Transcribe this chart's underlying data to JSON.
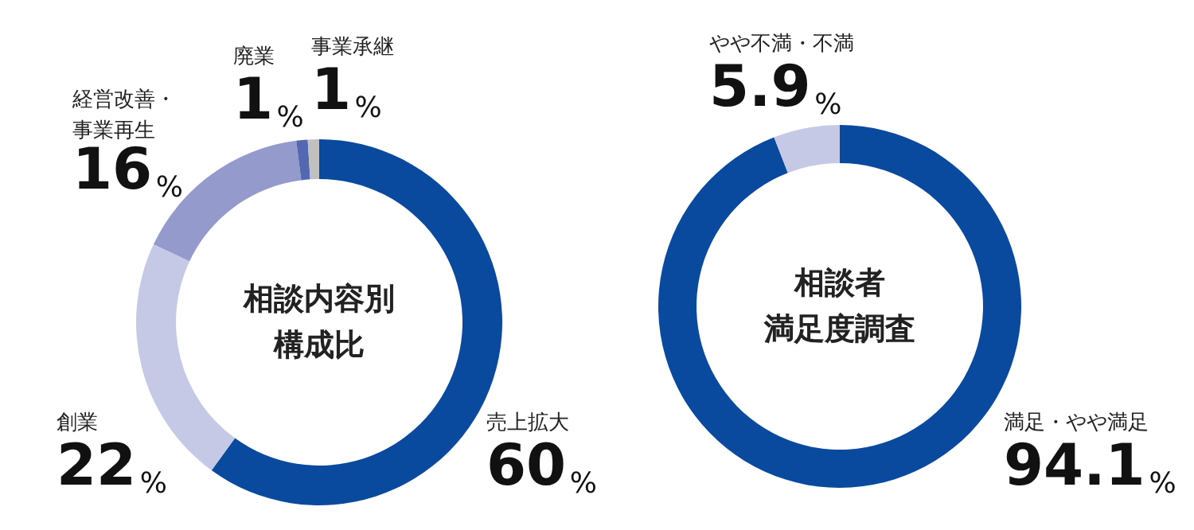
{
  "chart_data": [
    {
      "type": "donut",
      "title": "相談内容別構成比",
      "categories": [
        "売上拡大",
        "創業",
        "経営改善・事業再生",
        "廃業",
        "事業承継"
      ],
      "values": [
        60,
        22,
        16,
        1,
        1
      ],
      "colors": [
        "#0a4a9e",
        "#c5c9e6",
        "#949bcc",
        "#5468b2",
        "#c0c0c0"
      ],
      "value_labels": [
        "60%",
        "22%",
        "16%",
        "1%",
        "1%"
      ]
    },
    {
      "type": "donut",
      "title": "相談者満足度調査",
      "categories": [
        "満足・やや満足",
        "やや不満・不満"
      ],
      "values": [
        94.1,
        5.9
      ],
      "colors": [
        "#0a4a9e",
        "#c5c9e6"
      ],
      "value_labels": [
        "94.1%",
        "5.9%"
      ]
    }
  ]
}
